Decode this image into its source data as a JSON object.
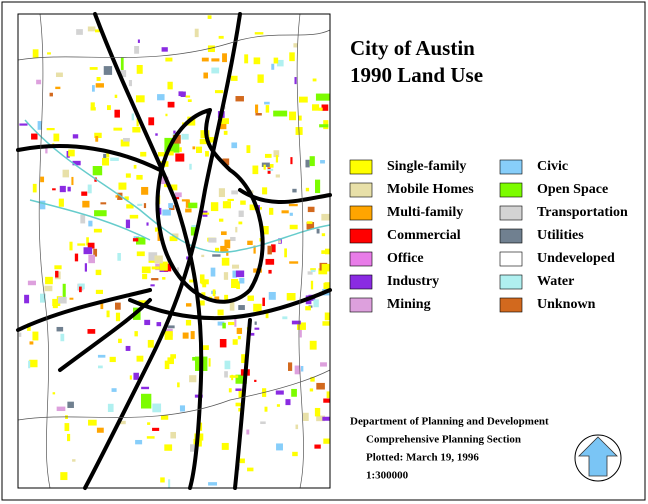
{
  "title": [
    "City of Austin",
    "1990 Land Use"
  ],
  "legend": [
    {
      "label": "Single-family",
      "color": "#ffff00"
    },
    {
      "label": "Mobile Homes",
      "color": "#e8e0a8"
    },
    {
      "label": "Multi-family",
      "color": "#ffa500"
    },
    {
      "label": "Commercial",
      "color": "#ff0000"
    },
    {
      "label": "Office",
      "color": "#e87ce8"
    },
    {
      "label": "Industry",
      "color": "#8a2be2"
    },
    {
      "label": "Mining",
      "color": "#dda0dd"
    },
    {
      "label": "Civic",
      "color": "#87cefa"
    },
    {
      "label": "Open Space",
      "color": "#7cfc00"
    },
    {
      "label": "Transportation",
      "color": "#d3d3d3"
    },
    {
      "label": "Utilities",
      "color": "#708090"
    },
    {
      "label": "Undeveloped",
      "color": "#ffffff"
    },
    {
      "label": "Water",
      "color": "#b0f0f0"
    },
    {
      "label": "Unknown",
      "color": "#d2691e"
    }
  ],
  "credits": [
    "Department of Planning and Development",
    "Comprehensive Planning Section",
    "Plotted: March 19, 1996",
    "1:300000"
  ]
}
